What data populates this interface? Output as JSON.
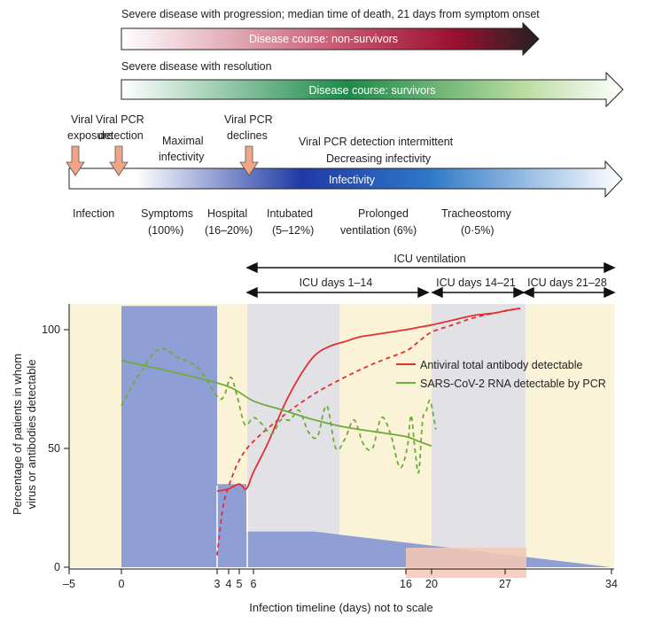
{
  "header": {
    "nonsurv_caption": "Severe disease with progression; median time of death, 21 days from symptom onset",
    "nonsurv_label": "Disease course: non-survivors",
    "surv_caption": "Severe disease with resolution",
    "surv_label": "Disease course: survivors",
    "infectivity_label": "Infectivity",
    "viral_exposure_l1": "Viral",
    "viral_exposure_l2": "exposure",
    "pcr_detection_l1": "Viral PCR",
    "pcr_detection_l2": "detection",
    "maximal_l1": "Maximal",
    "maximal_l2": "infectivity",
    "pcr_declines_l1": "Viral PCR",
    "pcr_declines_l2": "declines",
    "intermittent_l1": "Viral PCR detection intermittent",
    "intermittent_l2": "Decreasing infectivity"
  },
  "stages": {
    "infection": "Infection",
    "symptoms_l1": "Symptoms",
    "symptoms_l2": "(100%)",
    "hospital_l1": "Hospital",
    "hospital_l2": "(16–20%)",
    "intubated_l1": "Intubated",
    "intubated_l2": "(5–12%)",
    "prolonged_l1": "Prolonged",
    "prolonged_l2": "ventilation (6%)",
    "tracheostomy_l1": "Tracheostomy",
    "tracheostomy_l2": "(0·5%)"
  },
  "icu": {
    "ventilation": "ICU ventilation",
    "days_1_14": "ICU days 1–14",
    "days_14_21": "ICU days 14–21",
    "days_21_28": "ICU days 21–28"
  },
  "colors": {
    "band_yellow": "#fbf3d8",
    "band_grey": "#e2e2e6",
    "band_blue": "#8f9fd6",
    "antibody": "#e0312f",
    "pcr": "#6dac3a",
    "peach": "#f6c8b4",
    "arrow_marker": "#f2a486"
  },
  "chart_data": {
    "type": "line",
    "xlabel": "Infection timeline (days) not to scale",
    "ylabel_l1": "Percentage of patients in whom",
    "ylabel_l2": "virus or antibodies detectable",
    "x_ticks": [
      "–5",
      "0",
      "3",
      "4",
      "5",
      "6",
      "16",
      "20",
      "27",
      "34"
    ],
    "x_tick_values": [
      -5,
      0,
      3,
      4,
      5,
      6,
      16,
      20,
      27,
      34
    ],
    "y_ticks": [
      "0",
      "50",
      "100"
    ],
    "y_tick_values": [
      0,
      50,
      100
    ],
    "ylim": [
      0,
      110
    ],
    "legend_position": "upper-right",
    "series": [
      {
        "name": "Antiviral total antibody detectable",
        "style": "solid",
        "x": [
          3,
          4,
          5,
          5.5,
          6,
          7,
          8,
          9,
          10,
          11,
          12,
          13,
          14,
          16,
          18,
          20,
          22,
          24,
          26,
          27,
          28
        ],
        "y": [
          32,
          33,
          35,
          33,
          40,
          53,
          68,
          80,
          89,
          93,
          95,
          97,
          98,
          100,
          101,
          102,
          104,
          106,
          107,
          108,
          109
        ]
      },
      {
        "name": "",
        "style": "dashed",
        "x": [
          3,
          3.5,
          4,
          5,
          6,
          8,
          10,
          12,
          14,
          16,
          18,
          20,
          22,
          24,
          26,
          28
        ],
        "y": [
          5,
          25,
          34,
          45,
          53,
          64,
          73,
          80,
          86,
          91,
          95,
          99,
          102,
          105,
          107,
          109
        ]
      },
      {
        "name": "SARS-CoV-2 RNA detectable by PCR",
        "style": "solid",
        "x": [
          0,
          2,
          4,
          6,
          8,
          10,
          12,
          14,
          16,
          18,
          20
        ],
        "y": [
          87,
          81,
          76,
          70,
          66,
          62,
          59,
          57,
          55,
          53,
          51
        ]
      },
      {
        "name": "",
        "style": "dashed",
        "x": [
          0,
          0.6,
          1.2,
          1.8,
          2.4,
          3.0,
          3.6,
          4.2,
          4.8,
          5.4,
          6.0,
          6.6,
          7.2,
          7.8,
          8.4,
          9.0,
          9.6,
          10.2,
          10.8,
          11.4,
          12.0,
          12.6,
          13.2,
          13.8,
          14.4,
          15.0,
          15.6,
          16.2,
          16.8,
          17.4,
          18.0,
          18.6,
          19.2,
          19.8,
          20.4
        ],
        "y": [
          68,
          82,
          92,
          88,
          84,
          72,
          72,
          80,
          72,
          60,
          63,
          60,
          56,
          62,
          62,
          66,
          57,
          55,
          68,
          50,
          54,
          62,
          52,
          50,
          63,
          56,
          42,
          50,
          64,
          50,
          40,
          62,
          66,
          70,
          58
        ]
      }
    ],
    "blue_area": [
      {
        "x": 0,
        "y": 110
      },
      {
        "x": 3,
        "y": 110
      },
      {
        "x": 3,
        "y": 35
      },
      {
        "x": 5.5,
        "y": 35
      },
      {
        "x": 5.5,
        "y": 15
      },
      {
        "x": 10,
        "y": 15
      },
      {
        "x": 34,
        "y": 0
      }
    ]
  }
}
